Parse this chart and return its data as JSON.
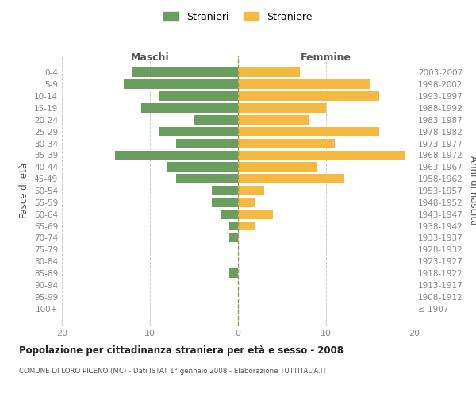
{
  "age_groups": [
    "0-4",
    "5-9",
    "10-14",
    "15-19",
    "20-24",
    "25-29",
    "30-34",
    "35-39",
    "40-44",
    "45-49",
    "50-54",
    "55-59",
    "60-64",
    "65-69",
    "70-74",
    "75-79",
    "80-84",
    "85-89",
    "90-94",
    "95-99",
    "100+"
  ],
  "birth_years": [
    "2003-2007",
    "1998-2002",
    "1993-1997",
    "1988-1992",
    "1983-1987",
    "1978-1982",
    "1973-1977",
    "1968-1972",
    "1963-1967",
    "1958-1962",
    "1953-1957",
    "1948-1952",
    "1943-1947",
    "1938-1942",
    "1933-1937",
    "1928-1932",
    "1923-1927",
    "1918-1922",
    "1913-1917",
    "1908-1912",
    "≤ 1907"
  ],
  "males": [
    12,
    13,
    9,
    11,
    5,
    9,
    7,
    14,
    8,
    7,
    3,
    3,
    2,
    1,
    1,
    0,
    0,
    1,
    0,
    0,
    0
  ],
  "females": [
    7,
    15,
    16,
    10,
    8,
    16,
    11,
    19,
    9,
    12,
    3,
    2,
    4,
    2,
    0,
    0,
    0,
    0,
    0,
    0,
    0
  ],
  "male_color": "#6a9e5f",
  "female_color": "#f5b942",
  "male_label": "Stranieri",
  "female_label": "Straniere",
  "title": "Popolazione per cittadinanza straniera per età e sesso - 2008",
  "subtitle": "COMUNE DI LORO PICENO (MC) - Dati ISTAT 1° gennaio 2008 - Elaborazione TUTTITALIA.IT",
  "xlabel_left": "Maschi",
  "xlabel_right": "Femmine",
  "ylabel_left": "Fasce di età",
  "ylabel_right": "Anni di nascita",
  "xlim": 20,
  "background_color": "#ffffff",
  "grid_color": "#cccccc"
}
